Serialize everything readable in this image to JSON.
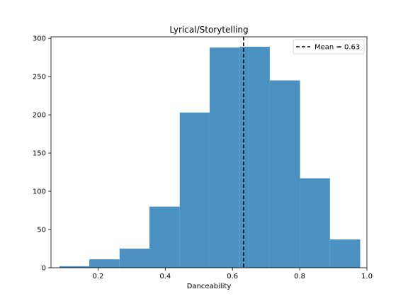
{
  "chart_data": {
    "type": "histogram",
    "title": "Lyrical/Storytelling",
    "xlabel": "Danceability",
    "ylabel": "",
    "xlim": [
      0.06,
      1.0
    ],
    "ylim": [
      0,
      302
    ],
    "xticks": [
      0.2,
      0.4,
      0.6,
      0.8,
      1.0
    ],
    "xtick_labels": [
      "0.2",
      "0.4",
      "0.6",
      "0.8",
      "1.0"
    ],
    "yticks": [
      0,
      50,
      100,
      150,
      200,
      250,
      300
    ],
    "ytick_labels": [
      "0",
      "50",
      "100",
      "150",
      "200",
      "250",
      "300"
    ],
    "bins": [
      {
        "x0": 0.085,
        "x1": 0.174,
        "count": 2
      },
      {
        "x0": 0.174,
        "x1": 0.264,
        "count": 11
      },
      {
        "x0": 0.264,
        "x1": 0.353,
        "count": 25
      },
      {
        "x0": 0.353,
        "x1": 0.443,
        "count": 80
      },
      {
        "x0": 0.443,
        "x1": 0.532,
        "count": 203
      },
      {
        "x0": 0.532,
        "x1": 0.622,
        "count": 288
      },
      {
        "x0": 0.622,
        "x1": 0.711,
        "count": 289
      },
      {
        "x0": 0.711,
        "x1": 0.801,
        "count": 245
      },
      {
        "x0": 0.801,
        "x1": 0.89,
        "count": 117
      },
      {
        "x0": 0.89,
        "x1": 0.98,
        "count": 37
      }
    ],
    "mean_line": {
      "value": 0.633,
      "label": "Mean = 0.63"
    },
    "bar_color": "#4a91c2",
    "mean_color": "#000000",
    "legend_placement": "top-right",
    "grid": false
  }
}
